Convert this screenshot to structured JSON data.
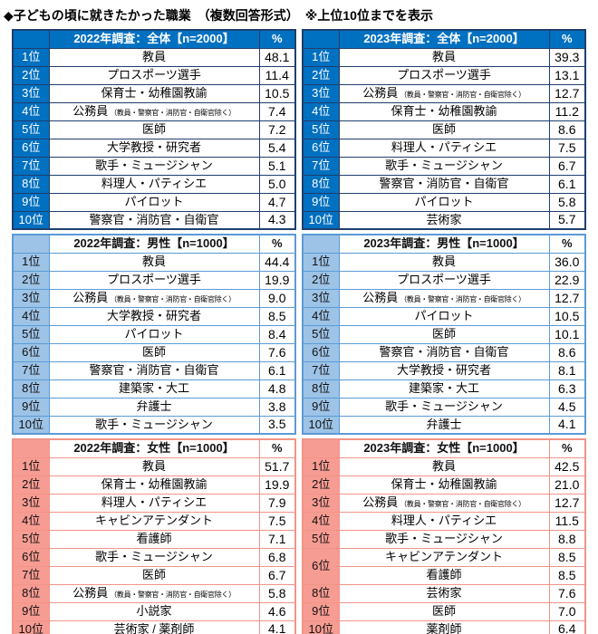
{
  "title": "◆子どもの頃に就きたかった職業　（複数回答形式）　※上位10位までを表示",
  "colors": {
    "overall_fill": "#0070C0",
    "overall_border": "#1F3E6E",
    "male_fill": "#9DC3E6",
    "male_border": "#5B9BD5",
    "female_fill": "#F79C92",
    "female_border": "#F1948A"
  },
  "chart_data": {
    "type": "table",
    "title": "子どもの頃に就きたかった職業",
    "answer_format": "（複数回答形式）",
    "display_note": "※上位10位までを表示",
    "tables": [
      {
        "id": "overall-2022",
        "theme": "overall",
        "header": "2022年調査：全体【n=2000】",
        "percent_label": "%",
        "rows": [
          {
            "rank": "1位",
            "job": "教員",
            "value": "48.1"
          },
          {
            "rank": "2位",
            "job": "プロスポーツ選手",
            "value": "11.4"
          },
          {
            "rank": "3位",
            "job": "保育士・幼稚園教諭",
            "value": "10.5"
          },
          {
            "rank": "4位",
            "job": "公務員",
            "note": "（教員・警察官・消防官・自衛官除く）",
            "value": "7.4"
          },
          {
            "rank": "5位",
            "job": "医師",
            "value": "7.2"
          },
          {
            "rank": "6位",
            "job": "大学教授・研究者",
            "value": "5.4"
          },
          {
            "rank": "7位",
            "job": "歌手・ミュージシャン",
            "value": "5.1"
          },
          {
            "rank": "8位",
            "job": "料理人・パティシエ",
            "value": "5.0"
          },
          {
            "rank": "9位",
            "job": "パイロット",
            "value": "4.7"
          },
          {
            "rank": "10位",
            "job": "警察官・消防官・自衛官",
            "value": "4.3"
          }
        ]
      },
      {
        "id": "overall-2023",
        "theme": "overall",
        "header": "2023年調査：全体【n=2000】",
        "percent_label": "%",
        "rows": [
          {
            "rank": "1位",
            "job": "教員",
            "value": "39.3"
          },
          {
            "rank": "2位",
            "job": "プロスポーツ選手",
            "value": "13.1"
          },
          {
            "rank": "3位",
            "job": "公務員",
            "note": "（教員・警察官・消防官・自衛官除く）",
            "value": "12.7"
          },
          {
            "rank": "4位",
            "job": "保育士・幼稚園教諭",
            "value": "11.2"
          },
          {
            "rank": "5位",
            "job": "医師",
            "value": "8.6"
          },
          {
            "rank": "6位",
            "job": "料理人・パティシエ",
            "value": "7.5"
          },
          {
            "rank": "7位",
            "job": "歌手・ミュージシャン",
            "value": "6.7"
          },
          {
            "rank": "8位",
            "job": "警察官・消防官・自衛官",
            "value": "6.1"
          },
          {
            "rank": "9位",
            "job": "パイロット",
            "value": "5.8"
          },
          {
            "rank": "10位",
            "job": "芸術家",
            "value": "5.7"
          }
        ]
      },
      {
        "id": "male-2022",
        "theme": "male",
        "header": "2022年調査：男性【n=1000】",
        "percent_label": "%",
        "rows": [
          {
            "rank": "1位",
            "job": "教員",
            "value": "44.4"
          },
          {
            "rank": "2位",
            "job": "プロスポーツ選手",
            "value": "19.9"
          },
          {
            "rank": "3位",
            "job": "公務員",
            "note": "（教員・警察官・消防官・自衛官除く）",
            "value": "9.0"
          },
          {
            "rank": "4位",
            "job": "大学教授・研究者",
            "value": "8.5"
          },
          {
            "rank": "5位",
            "job": "パイロット",
            "value": "8.4"
          },
          {
            "rank": "6位",
            "job": "医師",
            "value": "7.6"
          },
          {
            "rank": "7位",
            "job": "警察官・消防官・自衛官",
            "value": "6.1"
          },
          {
            "rank": "8位",
            "job": "建築家・大工",
            "value": "4.8"
          },
          {
            "rank": "9位",
            "job": "弁護士",
            "value": "3.8"
          },
          {
            "rank": "10位",
            "job": "歌手・ミュージシャン",
            "value": "3.5"
          }
        ]
      },
      {
        "id": "male-2023",
        "theme": "male",
        "header": "2023年調査：男性【n=1000】",
        "percent_label": "%",
        "rows": [
          {
            "rank": "1位",
            "job": "教員",
            "value": "36.0"
          },
          {
            "rank": "2位",
            "job": "プロスポーツ選手",
            "value": "22.9"
          },
          {
            "rank": "3位",
            "job": "公務員",
            "note": "（教員・警察官・消防官・自衛官除く）",
            "value": "12.7"
          },
          {
            "rank": "4位",
            "job": "パイロット",
            "value": "10.5"
          },
          {
            "rank": "5位",
            "job": "医師",
            "value": "10.1"
          },
          {
            "rank": "6位",
            "job": "警察官・消防官・自衛官",
            "value": "8.6"
          },
          {
            "rank": "7位",
            "job": "大学教授・研究者",
            "value": "8.1"
          },
          {
            "rank": "8位",
            "job": "建築家・大工",
            "value": "6.3"
          },
          {
            "rank": "9位",
            "job": "歌手・ミュージシャン",
            "value": "4.5"
          },
          {
            "rank": "10位",
            "job": "弁護士",
            "value": "4.1"
          }
        ]
      },
      {
        "id": "female-2022",
        "theme": "female",
        "header": "2022年調査：女性【n=1000】",
        "percent_label": "%",
        "rows": [
          {
            "rank": "1位",
            "job": "教員",
            "value": "51.7"
          },
          {
            "rank": "2位",
            "job": "保育士・幼稚園教諭",
            "value": "19.9"
          },
          {
            "rank": "3位",
            "job": "料理人・パティシエ",
            "value": "7.9"
          },
          {
            "rank": "4位",
            "job": "キャビンアテンダント",
            "value": "7.5"
          },
          {
            "rank": "5位",
            "job": "看護師",
            "value": "7.1"
          },
          {
            "rank": "6位",
            "job": "歌手・ミュージシャン",
            "value": "6.8"
          },
          {
            "rank": "7位",
            "job": "医師",
            "value": "6.7"
          },
          {
            "rank": "8位",
            "job": "公務員",
            "note": "（教員・警察官・消防官・自衛官除く）",
            "value": "5.8"
          },
          {
            "rank": "9位",
            "job": "小説家",
            "value": "4.6"
          },
          {
            "rank": "10位",
            "job": "芸術家 / 薬剤師",
            "value": "4.1"
          }
        ]
      },
      {
        "id": "female-2023",
        "theme": "female",
        "header": "2023年調査：女性【n=1000】",
        "percent_label": "%",
        "rows": [
          {
            "rank": "1位",
            "job": "教員",
            "value": "42.5"
          },
          {
            "rank": "2位",
            "job": "保育士・幼稚園教諭",
            "value": "21.0"
          },
          {
            "rank": "3位",
            "job": "公務員",
            "note": "（教員・警察官・消防官・自衛官除く）",
            "value": "12.7"
          },
          {
            "rank": "4位",
            "job": "料理人・パティシエ",
            "value": "11.5"
          },
          {
            "rank": "5位",
            "job": "歌手・ミュージシャン",
            "value": "8.8"
          },
          {
            "rank": "6位",
            "rank_span": 2,
            "job": "キャビンアテンダント",
            "value": "8.5"
          },
          {
            "rank": null,
            "job": "看護師",
            "value": "8.5"
          },
          {
            "rank": "8位",
            "job": "芸術家",
            "value": "7.6"
          },
          {
            "rank": "9位",
            "job": "医師",
            "value": "7.0"
          },
          {
            "rank": "10位",
            "job": "薬剤師",
            "value": "6.4"
          }
        ]
      }
    ]
  }
}
